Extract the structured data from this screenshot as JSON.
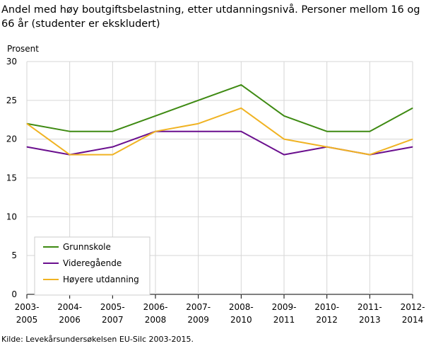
{
  "chart_data": {
    "type": "line",
    "title": "Andel med høy boutgiftsbelastning, etter utdanningsnivå. Personer mellom 16 og 66 år (studenter er ekskludert)",
    "ylabel": "Prosent",
    "xlabel": "",
    "source": "Kilde: Levekårsundersøkelsen EU-Silc 2003-2015.",
    "categories": [
      "2003-2005",
      "2004-2006",
      "2005-2007",
      "2006-2008",
      "2007-2009",
      "2008-2010",
      "2009-2011",
      "2010-2012",
      "2011-2013",
      "2012-2014"
    ],
    "ylim": [
      0,
      30
    ],
    "yticks": [
      0,
      5,
      10,
      15,
      20,
      25,
      30
    ],
    "grid": true,
    "legend_position": "bottom-left",
    "series": [
      {
        "name": "Grunnskole",
        "color": "#3e8a12",
        "values": [
          22,
          21,
          21,
          23,
          25,
          27,
          23,
          21,
          21,
          24
        ]
      },
      {
        "name": "Videregående",
        "color": "#6a0f8e",
        "values": [
          19,
          18,
          19,
          21,
          21,
          21,
          18,
          19,
          18,
          19
        ]
      },
      {
        "name": "Høyere utdanning",
        "color": "#f0b323",
        "values": [
          22,
          18,
          18,
          21,
          22,
          24,
          20,
          19,
          18,
          20
        ]
      }
    ]
  }
}
